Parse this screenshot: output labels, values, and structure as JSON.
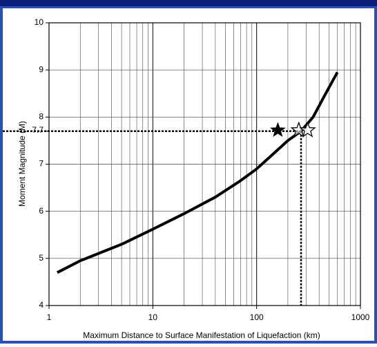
{
  "chart_data": {
    "type": "line",
    "xlabel": "Maximum Distance to Surface Manifestation of Liquefaction (km)",
    "ylabel": "Moment Magnitude (M)",
    "xscale": "log",
    "xlim": [
      1,
      1000
    ],
    "ylim": [
      4,
      10
    ],
    "xticks": [
      1,
      10,
      100,
      1000
    ],
    "yticks": [
      4,
      5,
      6,
      7,
      8,
      9,
      10
    ],
    "grid": true,
    "curve": {
      "color": "#000000",
      "x": [
        1.2,
        2,
        5,
        10,
        20,
        40,
        70,
        100,
        150,
        200,
        268,
        350,
        450,
        600
      ],
      "y": [
        4.7,
        4.95,
        5.3,
        5.62,
        5.95,
        6.3,
        6.65,
        6.9,
        7.25,
        7.5,
        7.7,
        8.0,
        8.45,
        8.95
      ]
    },
    "reference": {
      "x": 268,
      "y": 7.7
    },
    "markers": {
      "x": [
        160,
        255,
        310
      ],
      "y": [
        7.72,
        7.72,
        7.72
      ],
      "filled": [
        true,
        false,
        false
      ]
    }
  }
}
